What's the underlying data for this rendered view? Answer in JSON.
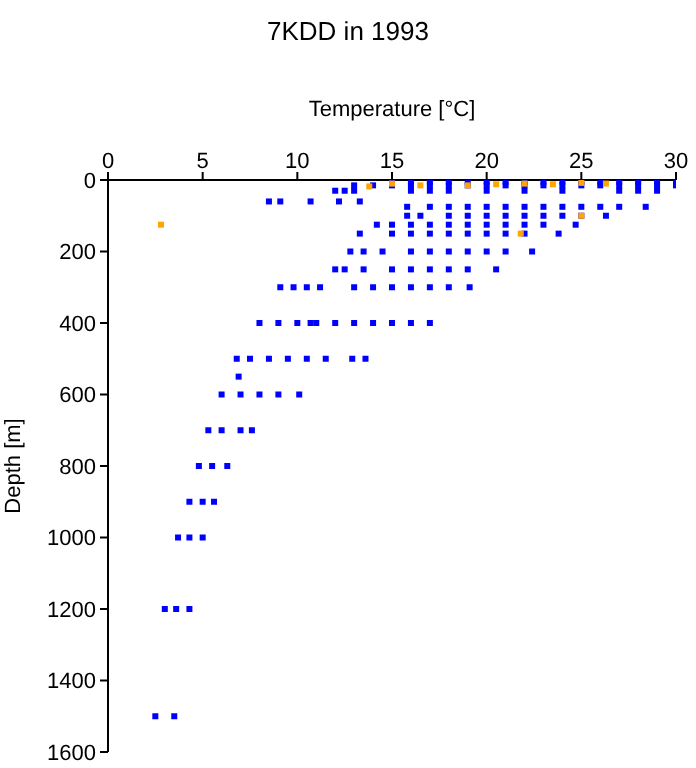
{
  "chart_data": {
    "type": "scatter",
    "title": "7KDD in 1993",
    "xlabel": "Temperature [°C]",
    "ylabel": "Depth [m]",
    "xlim": [
      0,
      30
    ],
    "xticks": [
      0,
      5,
      10,
      15,
      20,
      25,
      30
    ],
    "ylim": [
      1600,
      0
    ],
    "yticks": [
      0,
      200,
      400,
      600,
      800,
      1000,
      1200,
      1400,
      1600
    ],
    "grid": false,
    "legend": false,
    "marker": "square",
    "series": [
      {
        "color": "#0000ff",
        "x": [
          15,
          16,
          17,
          18,
          19,
          20,
          21,
          22,
          23,
          24,
          25,
          26,
          27,
          28,
          29,
          30,
          13,
          14,
          15,
          16,
          17,
          18,
          19,
          20,
          21,
          22,
          23,
          24,
          25,
          26,
          27,
          28,
          29,
          30,
          12,
          12.5,
          13,
          16,
          17,
          18,
          20,
          22,
          24,
          27,
          28,
          29,
          8.5,
          9.1,
          10.7,
          12.2,
          13.3,
          15.8,
          17,
          18,
          19,
          20,
          21,
          22,
          23,
          24,
          25,
          26,
          27,
          28.4,
          15.8,
          16.5,
          18,
          19,
          20,
          21,
          22,
          23,
          24,
          25,
          26.3,
          14.2,
          15,
          16,
          17,
          18,
          19,
          20,
          21,
          22,
          23,
          24.7,
          13.3,
          15,
          16,
          17,
          18,
          19,
          20,
          21,
          22,
          23.8,
          12.8,
          13.5,
          14.5,
          16,
          17,
          18,
          19,
          20,
          21,
          22.4,
          12,
          12.5,
          13.5,
          15,
          16,
          17,
          18,
          19,
          20.5,
          9.1,
          9.8,
          10.5,
          11.2,
          13,
          14,
          15,
          16,
          17,
          18,
          19.1,
          8,
          9,
          10,
          10.7,
          11,
          12,
          13,
          14,
          15,
          16,
          17,
          6.8,
          7.5,
          8.5,
          9.5,
          10.5,
          11.5,
          12.9,
          13.6,
          6.9,
          6,
          7,
          8,
          9,
          10.1,
          5.3,
          6,
          7,
          7.6,
          4.8,
          5.5,
          6.3,
          4.3,
          5,
          5.6,
          3.7,
          4.3,
          5,
          3,
          3.6,
          4.3,
          2.5,
          3.5
        ],
        "values": [
          5,
          5,
          5,
          5,
          5,
          5,
          5,
          5,
          5,
          5,
          5,
          5,
          5,
          5,
          5,
          5,
          15,
          15,
          15,
          15,
          15,
          15,
          15,
          15,
          15,
          15,
          15,
          15,
          15,
          15,
          15,
          15,
          15,
          15,
          30,
          30,
          30,
          30,
          30,
          30,
          30,
          30,
          30,
          30,
          30,
          30,
          60,
          60,
          60,
          60,
          60,
          75,
          75,
          75,
          75,
          75,
          75,
          75,
          75,
          75,
          75,
          75,
          75,
          75,
          100,
          100,
          100,
          100,
          100,
          100,
          100,
          100,
          100,
          100,
          100,
          125,
          125,
          125,
          125,
          125,
          125,
          125,
          125,
          125,
          125,
          125,
          150,
          150,
          150,
          150,
          150,
          150,
          150,
          150,
          150,
          150,
          200,
          200,
          200,
          200,
          200,
          200,
          200,
          200,
          200,
          200,
          250,
          250,
          250,
          250,
          250,
          250,
          250,
          250,
          250,
          300,
          300,
          300,
          300,
          300,
          300,
          300,
          300,
          300,
          300,
          300,
          400,
          400,
          400,
          400,
          400,
          400,
          400,
          400,
          400,
          400,
          400,
          500,
          500,
          500,
          500,
          500,
          500,
          500,
          500,
          550,
          600,
          600,
          600,
          600,
          600,
          700,
          700,
          700,
          700,
          800,
          800,
          800,
          900,
          900,
          900,
          1000,
          1000,
          1000,
          1200,
          1200,
          1200,
          1500,
          1500
        ]
      },
      {
        "color": "#ffa500",
        "x": [
          13.8,
          15,
          16.5,
          19,
          20.5,
          22,
          23.5,
          25,
          26.3,
          2.8,
          25,
          21.8
        ],
        "values": [
          18,
          10,
          15,
          15,
          12,
          10,
          12,
          8,
          10,
          125,
          100,
          150
        ]
      }
    ]
  }
}
